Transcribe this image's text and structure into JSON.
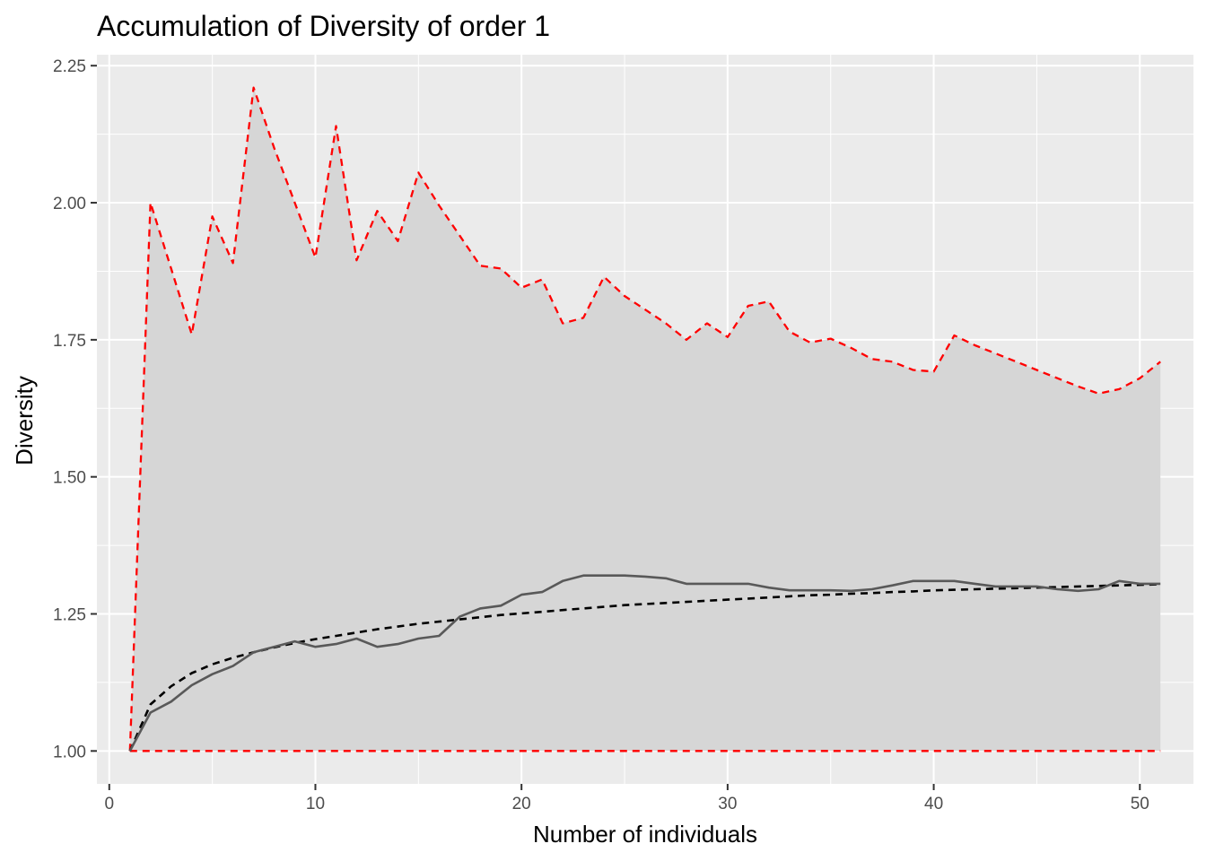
{
  "chart_data": {
    "type": "line",
    "title": "Accumulation of Diversity of order 1",
    "xlabel": "Number of individuals",
    "ylabel": "Diversity",
    "xlim": [
      -0.6,
      52.6
    ],
    "ylim": [
      0.94,
      2.27
    ],
    "xticks": [
      0,
      10,
      20,
      30,
      40,
      50
    ],
    "xtick_labels": [
      "0",
      "10",
      "20",
      "30",
      "40",
      "50"
    ],
    "yticks": [
      1.0,
      1.25,
      1.5,
      1.75,
      2.0,
      2.25
    ],
    "ytick_labels": [
      "1.00",
      "1.25",
      "1.50",
      "1.75",
      "2.00",
      "2.25"
    ],
    "grid": true,
    "legend": "none",
    "colors": {
      "panel": "#ebebeb",
      "grid": "#ffffff",
      "ribbon": "#d6d6d6",
      "observed": "#595959",
      "expected": "#000000",
      "bounds": "#ff0000"
    },
    "x": [
      1,
      2,
      3,
      4,
      5,
      6,
      7,
      8,
      9,
      10,
      11,
      12,
      13,
      14,
      15,
      16,
      17,
      18,
      19,
      20,
      21,
      22,
      23,
      24,
      25,
      26,
      27,
      28,
      29,
      30,
      31,
      32,
      33,
      34,
      35,
      36,
      37,
      38,
      39,
      40,
      41,
      42,
      43,
      44,
      45,
      46,
      47,
      48,
      49,
      50,
      51
    ],
    "series": [
      {
        "style": "solid",
        "values": [
          1.0,
          1.07,
          1.09,
          1.12,
          1.14,
          1.155,
          1.18,
          1.19,
          1.2,
          1.19,
          1.195,
          1.205,
          1.19,
          1.195,
          1.205,
          1.21,
          1.245,
          1.26,
          1.265,
          1.285,
          1.29,
          1.31,
          1.32,
          1.32,
          1.32,
          1.318,
          1.315,
          1.305,
          1.305,
          1.305,
          1.305,
          1.298,
          1.293,
          1.293,
          1.293,
          1.292,
          1.295,
          1.302,
          1.31,
          1.31,
          1.31,
          1.305,
          1.3,
          1.3,
          1.3,
          1.295,
          1.292,
          1.295,
          1.31,
          1.305,
          1.305
        ]
      },
      {
        "style": "dashed",
        "values": [
          1.0,
          1.085,
          1.118,
          1.142,
          1.158,
          1.17,
          1.18,
          1.189,
          1.197,
          1.204,
          1.21,
          1.216,
          1.222,
          1.227,
          1.232,
          1.236,
          1.24,
          1.244,
          1.248,
          1.251,
          1.254,
          1.257,
          1.26,
          1.263,
          1.266,
          1.268,
          1.27,
          1.272,
          1.274,
          1.276,
          1.278,
          1.28,
          1.282,
          1.284,
          1.285,
          1.287,
          1.288,
          1.29,
          1.291,
          1.293,
          1.294,
          1.295,
          1.296,
          1.297,
          1.298,
          1.299,
          1.3,
          1.301,
          1.302,
          1.303,
          1.304
        ]
      },
      {
        "style": "dashed-upper",
        "values": [
          1.0,
          2.0,
          1.88,
          1.76,
          1.975,
          1.89,
          2.21,
          2.1,
          2.0,
          1.9,
          2.14,
          1.895,
          1.985,
          1.93,
          2.055,
          1.995,
          1.94,
          1.885,
          1.88,
          1.845,
          1.86,
          1.78,
          1.79,
          1.865,
          1.83,
          1.805,
          1.78,
          1.75,
          1.78,
          1.755,
          1.812,
          1.82,
          1.765,
          1.745,
          1.752,
          1.735,
          1.715,
          1.71,
          1.695,
          1.692,
          1.758,
          1.74,
          1.725,
          1.71,
          1.695,
          1.68,
          1.665,
          1.652,
          1.66,
          1.68,
          1.71
        ]
      },
      {
        "style": "dashed-lower",
        "values": [
          1.0,
          1.0,
          1.0,
          1.0,
          1.0,
          1.0,
          1.0,
          1.0,
          1.0,
          1.0,
          1.0,
          1.0,
          1.0,
          1.0,
          1.0,
          1.0,
          1.0,
          1.0,
          1.0,
          1.0,
          1.0,
          1.0,
          1.0,
          1.0,
          1.0,
          1.0,
          1.0,
          1.0,
          1.0,
          1.0,
          1.0,
          1.0,
          1.0,
          1.0,
          1.0,
          1.0,
          1.0,
          1.0,
          1.0,
          1.0,
          1.0,
          1.0,
          1.0,
          1.0,
          1.0,
          1.0,
          1.0,
          1.0,
          1.0,
          1.0,
          1.0
        ]
      }
    ]
  }
}
